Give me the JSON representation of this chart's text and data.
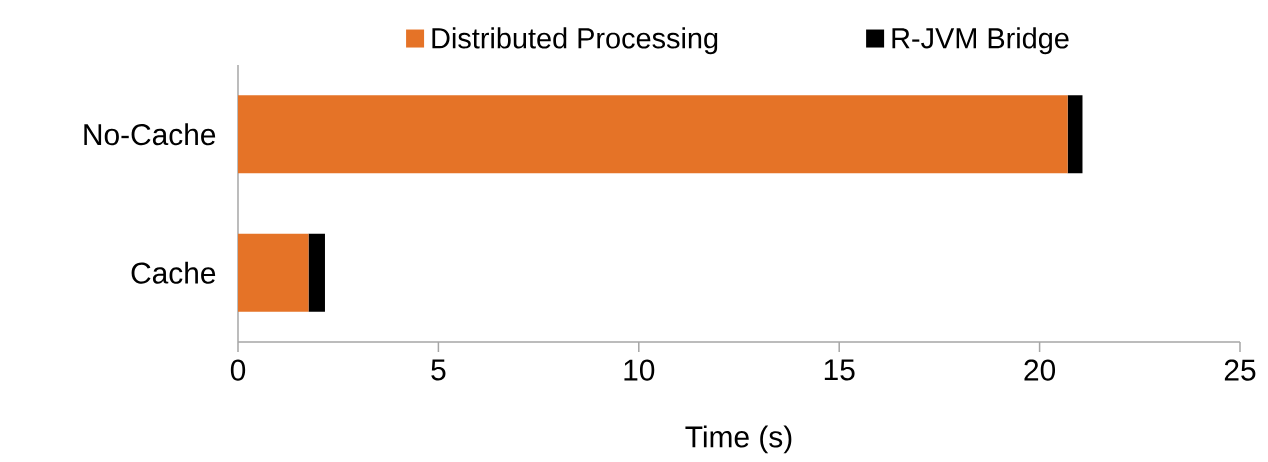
{
  "chart_data": {
    "type": "bar",
    "orientation": "horizontal",
    "stacked": true,
    "categories": [
      "No-Cache",
      "Cache"
    ],
    "xlabel": "Time (s)",
    "xlim": [
      0,
      25
    ],
    "xticks": [
      0,
      5,
      10,
      15,
      20,
      25
    ],
    "legend": "top",
    "grid": false,
    "series": [
      {
        "name": "Distributed Processing",
        "color": "#e57327",
        "values": [
          20.7,
          1.76
        ]
      },
      {
        "name": "R-JVM Bridge",
        "color": "#000000",
        "values": [
          0.37,
          0.41
        ]
      }
    ]
  }
}
